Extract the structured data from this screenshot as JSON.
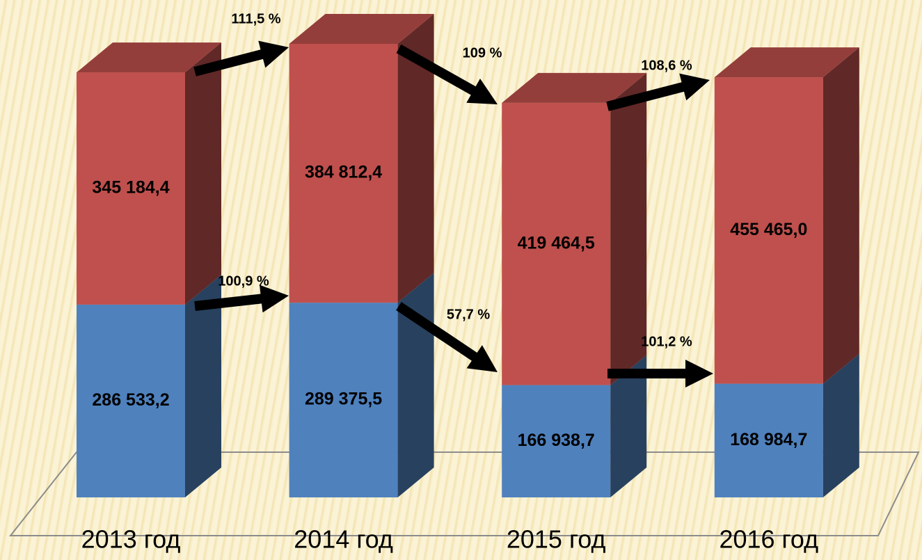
{
  "chart_data": {
    "type": "bar3d_stacked",
    "categories": [
      "2013 год",
      "2014 год",
      "2015 год",
      "2016 год"
    ],
    "series": [
      {
        "color": "#4f81bd",
        "values": [
          286533.2,
          289375.5,
          166938.7,
          168984.7
        ],
        "value_labels": [
          "286 533,2",
          "289 375,5",
          "166 938,7",
          "168 984,7"
        ]
      },
      {
        "color": "#c0504d",
        "values": [
          345184.4,
          384812.4,
          419464.5,
          455465.0
        ],
        "value_labels": [
          "345 184,4",
          "384 812,4",
          "419 464,5",
          "455 465,0"
        ]
      }
    ],
    "annotations": [
      "111,5 %",
      "109 %",
      "108,6 %",
      "100,9 %",
      "57,7 %",
      "101,2 %"
    ]
  }
}
